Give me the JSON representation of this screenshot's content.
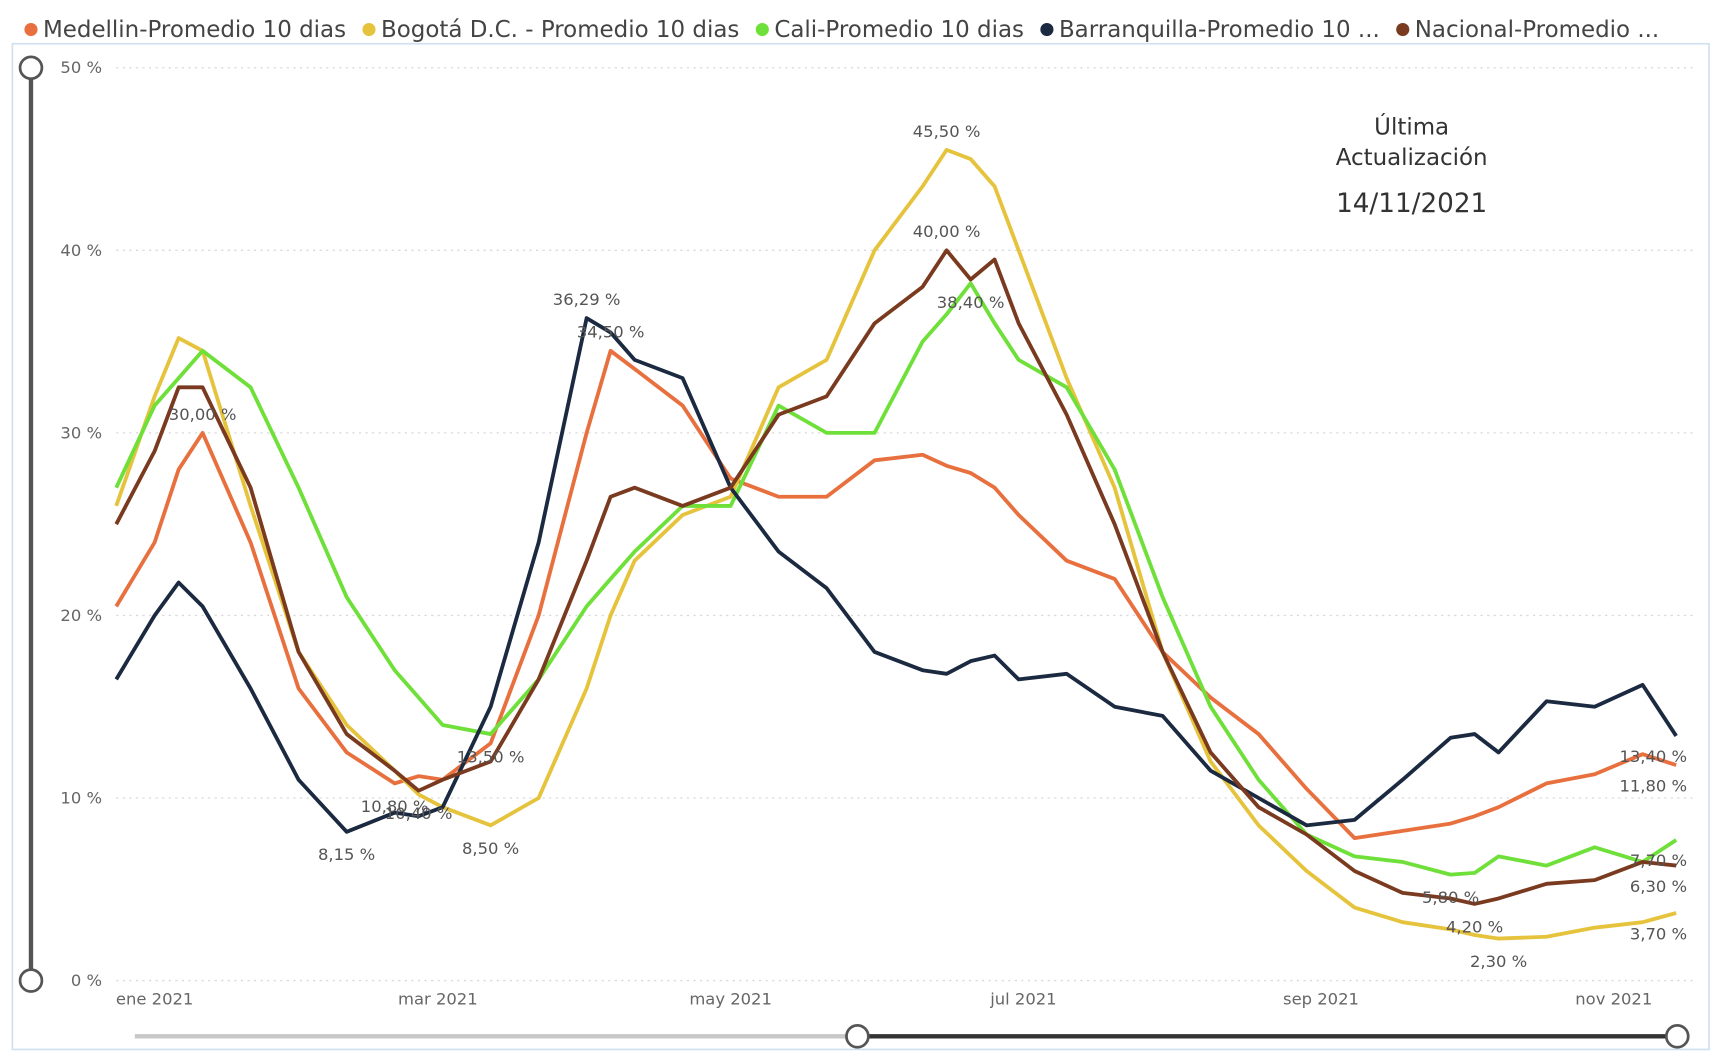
{
  "chart_data": {
    "type": "line",
    "annotation": [
      "Última",
      "Actualización",
      "14/11/2021"
    ],
    "x": [
      -8,
      0,
      5,
      10,
      20,
      30,
      40,
      50,
      55,
      60,
      70,
      80,
      90,
      95,
      100,
      110,
      120,
      130,
      140,
      150,
      160,
      165,
      170,
      175,
      180,
      190,
      200,
      210,
      220,
      230,
      240,
      250,
      260,
      270,
      275,
      280,
      290,
      300,
      310,
      317
    ],
    "xlim": [
      -8,
      317
    ],
    "xticks": [
      {
        "value": 0,
        "label": "ene 2021"
      },
      {
        "value": 59,
        "label": "mar 2021"
      },
      {
        "value": 120,
        "label": "may 2021"
      },
      {
        "value": 181,
        "label": "jul 2021"
      },
      {
        "value": 243,
        "label": "sep 2021"
      },
      {
        "value": 304,
        "label": "nov 2021"
      }
    ],
    "ylim": [
      0,
      50
    ],
    "yticks": [
      {
        "value": 0,
        "label": "0 %"
      },
      {
        "value": 10,
        "label": "10 %"
      },
      {
        "value": 20,
        "label": "20 %"
      },
      {
        "value": 30,
        "label": "30 %"
      },
      {
        "value": 40,
        "label": "40 %"
      },
      {
        "value": 50,
        "label": "50 %"
      }
    ],
    "grid": true,
    "legend": "top",
    "series": [
      {
        "name": "Medellin-Promedio  10 dias",
        "color": "#e8703e",
        "values": [
          20.5,
          24,
          28,
          30,
          24,
          16,
          12.5,
          10.8,
          11.2,
          11,
          13,
          20,
          30,
          34.5,
          33.5,
          31.5,
          27.5,
          26.5,
          26.5,
          28.5,
          28.8,
          28.2,
          27.8,
          27,
          25.5,
          23,
          22,
          18,
          15.5,
          13.5,
          10.5,
          7.8,
          8.2,
          8.6,
          9,
          9.5,
          10.8,
          11.3,
          12.4,
          11.8
        ],
        "value_labels": [
          null,
          null,
          null,
          "30,00 %",
          null,
          null,
          null,
          "10,80 %",
          null,
          null,
          null,
          null,
          null,
          "34,50 %",
          null,
          null,
          null,
          null,
          null,
          null,
          null,
          null,
          null,
          null,
          null,
          null,
          null,
          null,
          null,
          null,
          null,
          null,
          null,
          null,
          null,
          null,
          null,
          null,
          null,
          "11,80 %"
        ]
      },
      {
        "name": "Bogotá D.C. - Promedio  10 dias",
        "color": "#e6c33c",
        "values": [
          26,
          32,
          35.2,
          34.5,
          26,
          18,
          14,
          11.5,
          10.2,
          9.5,
          8.5,
          10,
          16,
          20,
          23,
          25.5,
          26.5,
          32.5,
          34,
          40,
          43.5,
          45.5,
          45,
          43.5,
          40,
          33,
          27,
          18,
          12,
          8.5,
          6,
          4,
          3.2,
          2.8,
          2.5,
          2.3,
          2.4,
          2.9,
          3.2,
          3.7
        ],
        "value_labels": [
          null,
          null,
          null,
          null,
          null,
          null,
          null,
          null,
          null,
          null,
          "8,50 %",
          null,
          null,
          null,
          null,
          null,
          null,
          null,
          null,
          null,
          null,
          "45,50 %",
          null,
          null,
          null,
          null,
          null,
          null,
          null,
          null,
          null,
          null,
          null,
          null,
          null,
          "2,30 %",
          null,
          null,
          null,
          "3,70 %"
        ]
      },
      {
        "name": "Cali-Promedio  10 dias",
        "color": "#6fe03a",
        "values": [
          27,
          31.5,
          33,
          34.5,
          32.5,
          27,
          21,
          17,
          15.5,
          14,
          13.5,
          16.5,
          20.5,
          22,
          23.5,
          26,
          26,
          31.5,
          30,
          30,
          35,
          36.5,
          38.2,
          36,
          34,
          32.5,
          28,
          21,
          15,
          11,
          8,
          6.8,
          6.5,
          5.8,
          5.9,
          6.8,
          6.3,
          7.3,
          6.5,
          7.7
        ],
        "value_labels": [
          null,
          null,
          null,
          null,
          null,
          null,
          null,
          null,
          null,
          null,
          "13,50 %",
          null,
          null,
          null,
          null,
          null,
          null,
          null,
          null,
          null,
          null,
          null,
          null,
          null,
          null,
          null,
          null,
          null,
          null,
          null,
          null,
          null,
          null,
          "5,80 %",
          null,
          null,
          null,
          null,
          null,
          "7,70 %"
        ]
      },
      {
        "name": "Barranquilla-Promedio  10 ...",
        "color": "#1b2a41",
        "values": [
          16.5,
          20,
          21.8,
          20.5,
          16,
          11,
          8.15,
          9.2,
          9,
          9.5,
          15,
          24,
          36.29,
          35.5,
          34,
          33,
          27,
          23.5,
          21.5,
          18,
          17,
          16.8,
          17.5,
          17.8,
          16.5,
          16.8,
          15,
          14.5,
          11.5,
          10,
          8.5,
          8.8,
          11,
          13.3,
          13.5,
          12.5,
          15.3,
          15,
          16.2,
          13.4
        ],
        "value_labels": [
          null,
          null,
          null,
          null,
          null,
          null,
          "8,15 %",
          null,
          null,
          null,
          null,
          null,
          "36,29 %",
          null,
          null,
          null,
          null,
          null,
          null,
          null,
          null,
          null,
          null,
          null,
          null,
          null,
          null,
          null,
          null,
          null,
          null,
          null,
          null,
          null,
          null,
          null,
          null,
          null,
          null,
          "13,40 %"
        ]
      },
      {
        "name": "Nacional-Promedio ...",
        "color": "#7a3a1f",
        "values": [
          25,
          29,
          32.5,
          32.5,
          27,
          18,
          13.5,
          11.5,
          10.4,
          11,
          12,
          16.5,
          23,
          26.5,
          27,
          26,
          27,
          31,
          32,
          36,
          38,
          40,
          38.4,
          39.5,
          36,
          31,
          25,
          18,
          12.5,
          9.5,
          8,
          6,
          4.8,
          4.5,
          4.2,
          4.5,
          5.3,
          5.5,
          6.5,
          6.3
        ],
        "value_labels": [
          null,
          null,
          null,
          null,
          null,
          null,
          null,
          null,
          "10,40 %",
          null,
          null,
          null,
          null,
          null,
          null,
          null,
          null,
          null,
          null,
          null,
          null,
          "40,00 %",
          "38,40 %",
          null,
          null,
          null,
          null,
          null,
          null,
          null,
          null,
          null,
          null,
          null,
          "4,20 %",
          null,
          null,
          null,
          null,
          "6,30 %"
        ]
      }
    ]
  }
}
